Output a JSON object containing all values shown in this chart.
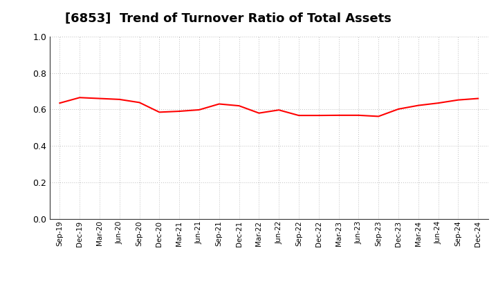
{
  "title": "[6853]  Trend of Turnover Ratio of Total Assets",
  "title_fontsize": 13,
  "line_color": "#FF0000",
  "line_width": 1.5,
  "background_color": "#FFFFFF",
  "grid_color": "#BBBBBB",
  "ylim": [
    0.0,
    1.0
  ],
  "yticks": [
    0.0,
    0.2,
    0.4,
    0.6,
    0.8,
    1.0
  ],
  "x_labels": [
    "Sep-19",
    "Dec-19",
    "Mar-20",
    "Jun-20",
    "Sep-20",
    "Dec-20",
    "Mar-21",
    "Jun-21",
    "Sep-21",
    "Dec-21",
    "Mar-22",
    "Jun-22",
    "Sep-22",
    "Dec-22",
    "Mar-23",
    "Jun-23",
    "Sep-23",
    "Dec-23",
    "Mar-24",
    "Jun-24",
    "Sep-24",
    "Dec-24"
  ],
  "values": [
    0.635,
    0.665,
    0.66,
    0.655,
    0.638,
    0.585,
    0.59,
    0.598,
    0.63,
    0.62,
    0.58,
    0.597,
    0.567,
    0.567,
    0.568,
    0.568,
    0.562,
    0.602,
    0.622,
    0.635,
    0.652,
    0.66
  ]
}
